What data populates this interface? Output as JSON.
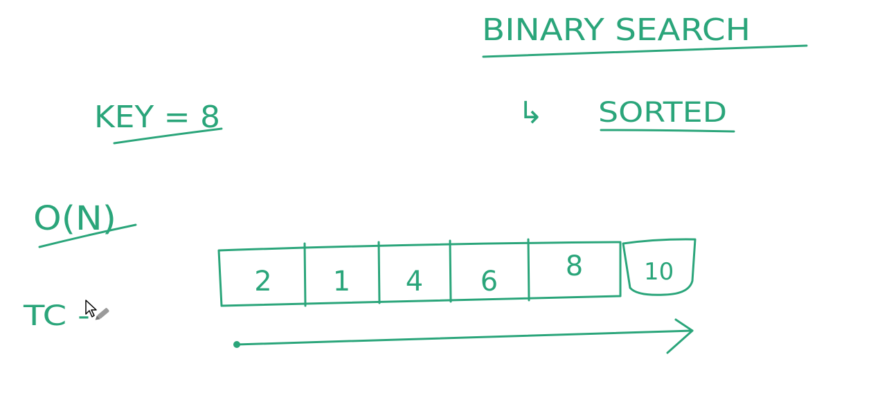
{
  "ink_color": "#2aa57a",
  "title": "BINARY SEARCH",
  "arrow_glyph": "↳",
  "note": "SORTED",
  "key_label": "KEY = 8",
  "complexity": "O(N)",
  "tc_label": "TC -",
  "array": {
    "values": [
      "2",
      "1",
      "4",
      "6",
      "8"
    ],
    "extra": "10"
  },
  "cursor": {
    "icon": "arrow-cursor-icon",
    "tool_icon": "pen-tool-icon"
  }
}
